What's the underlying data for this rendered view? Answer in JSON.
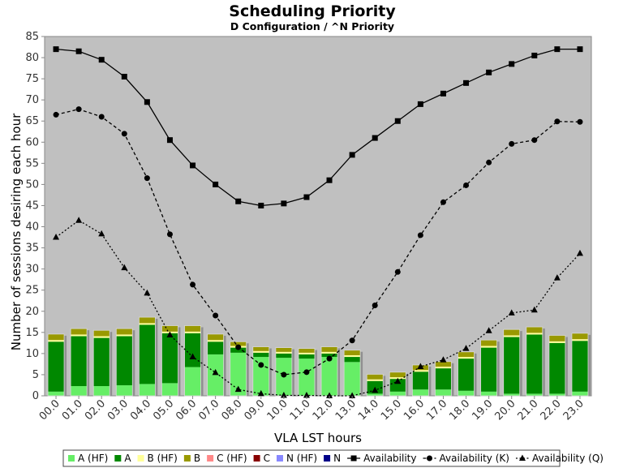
{
  "chart_data": {
    "type": "bar",
    "title": "Scheduling Priority",
    "subtitle": "D Configuration / ^N Priority",
    "xlabel": "VLA LST hours",
    "ylabel": "Number of sessions desiring each hour",
    "ylim": [
      0,
      85
    ],
    "yticks": [
      "0",
      "5",
      "10",
      "15",
      "20",
      "25",
      "30",
      "35",
      "40",
      "45",
      "50",
      "55",
      "60",
      "65",
      "70",
      "75",
      "80",
      "85"
    ],
    "grid": false,
    "legend_position": "bottom",
    "categories": [
      "00.0",
      "01.0",
      "02.0",
      "03.0",
      "04.0",
      "05.0",
      "06.0",
      "07.0",
      "08.0",
      "09.0",
      "10.0",
      "11.0",
      "12.0",
      "13.0",
      "14.0",
      "15.0",
      "16.0",
      "17.0",
      "18.0",
      "19.0",
      "20.0",
      "21.0",
      "22.0",
      "23.0"
    ],
    "bar_series": [
      {
        "name": "A (HF)",
        "color": "#66ee66",
        "values": [
          1.0,
          2.3,
          2.3,
          2.5,
          2.8,
          3.0,
          6.8,
          9.8,
          10.2,
          9.2,
          9.0,
          8.8,
          9.2,
          8.0,
          0.5,
          1.0,
          1.5,
          1.5,
          1.2,
          1.0,
          0.5,
          0.5,
          0.5,
          1.0
        ]
      },
      {
        "name": "A",
        "color": "#008800",
        "values": [
          11.8,
          11.8,
          11.4,
          11.6,
          14.0,
          11.8,
          8.0,
          3.0,
          1.2,
          1.0,
          1.0,
          1.0,
          0.8,
          1.2,
          3.0,
          3.0,
          4.2,
          5.0,
          7.6,
          10.4,
          13.4,
          14.0,
          12.0,
          12.0
        ]
      },
      {
        "name": "B (HF)",
        "color": "#ffff99",
        "values": [
          0.4,
          0.4,
          0.4,
          0.4,
          0.4,
          0.4,
          0.4,
          0.4,
          0.4,
          0.4,
          0.4,
          0.4,
          0.4,
          0.4,
          0.4,
          0.4,
          0.4,
          0.4,
          0.4,
          0.4,
          0.4,
          0.4,
          0.4,
          0.4
        ]
      },
      {
        "name": "B",
        "color": "#999900",
        "values": [
          1.4,
          1.4,
          1.4,
          1.4,
          1.4,
          1.4,
          1.4,
          1.4,
          1.0,
          1.0,
          1.0,
          1.0,
          1.2,
          1.2,
          1.2,
          1.2,
          1.2,
          1.2,
          1.2,
          1.4,
          1.4,
          1.4,
          1.4,
          1.4
        ]
      },
      {
        "name": "C (HF)",
        "color": "#ff8888",
        "values": [
          0,
          0,
          0,
          0,
          0,
          0,
          0,
          0,
          0,
          0,
          0,
          0,
          0,
          0,
          0,
          0,
          0,
          0,
          0,
          0,
          0,
          0,
          0,
          0
        ]
      },
      {
        "name": "C",
        "color": "#880000",
        "values": [
          0,
          0,
          0,
          0,
          0,
          0,
          0,
          0,
          0,
          0,
          0,
          0,
          0,
          0,
          0,
          0,
          0,
          0,
          0,
          0,
          0,
          0,
          0,
          0
        ]
      },
      {
        "name": "N (HF)",
        "color": "#8888ff",
        "values": [
          0,
          0,
          0,
          0,
          0,
          0,
          0,
          0,
          0,
          0,
          0,
          0,
          0,
          0,
          0,
          0,
          0,
          0,
          0,
          0,
          0,
          0,
          0,
          0
        ]
      },
      {
        "name": "N",
        "color": "#000088",
        "values": [
          0,
          0,
          0,
          0,
          0,
          0,
          0,
          0,
          0,
          0,
          0,
          0,
          0,
          0,
          0,
          0,
          0,
          0,
          0,
          0,
          0,
          0,
          0,
          0
        ]
      }
    ],
    "line_series": [
      {
        "name": "Availability",
        "marker": "square",
        "dash": "solid",
        "values": [
          82,
          81.5,
          79.5,
          75.5,
          69.5,
          60.5,
          54.5,
          50,
          46,
          45,
          45.5,
          47,
          51,
          57,
          61,
          65,
          69,
          71.5,
          74,
          76.5,
          78.5,
          80.5,
          82,
          82
        ]
      },
      {
        "name": "Availability (K)",
        "marker": "circle",
        "dash": "dashed",
        "values": [
          66.5,
          67.8,
          66,
          62,
          51.5,
          38.2,
          26.3,
          19,
          11.5,
          7.3,
          5,
          5.6,
          8.8,
          13.1,
          21.4,
          29.3,
          38,
          45.8,
          49.8,
          55.2,
          59.6,
          60.5,
          64.9,
          64.8
        ]
      },
      {
        "name": "Availability (Q)",
        "marker": "triangle",
        "dash": "dotted",
        "values": [
          37.5,
          41.5,
          38.3,
          30.3,
          24.3,
          14.4,
          9.2,
          5.5,
          1.5,
          0.5,
          0.1,
          0.1,
          0,
          0,
          1.3,
          3.4,
          6.9,
          8.5,
          11.2,
          15.4,
          19.6,
          20.3,
          27.9,
          33.7
        ]
      }
    ]
  }
}
